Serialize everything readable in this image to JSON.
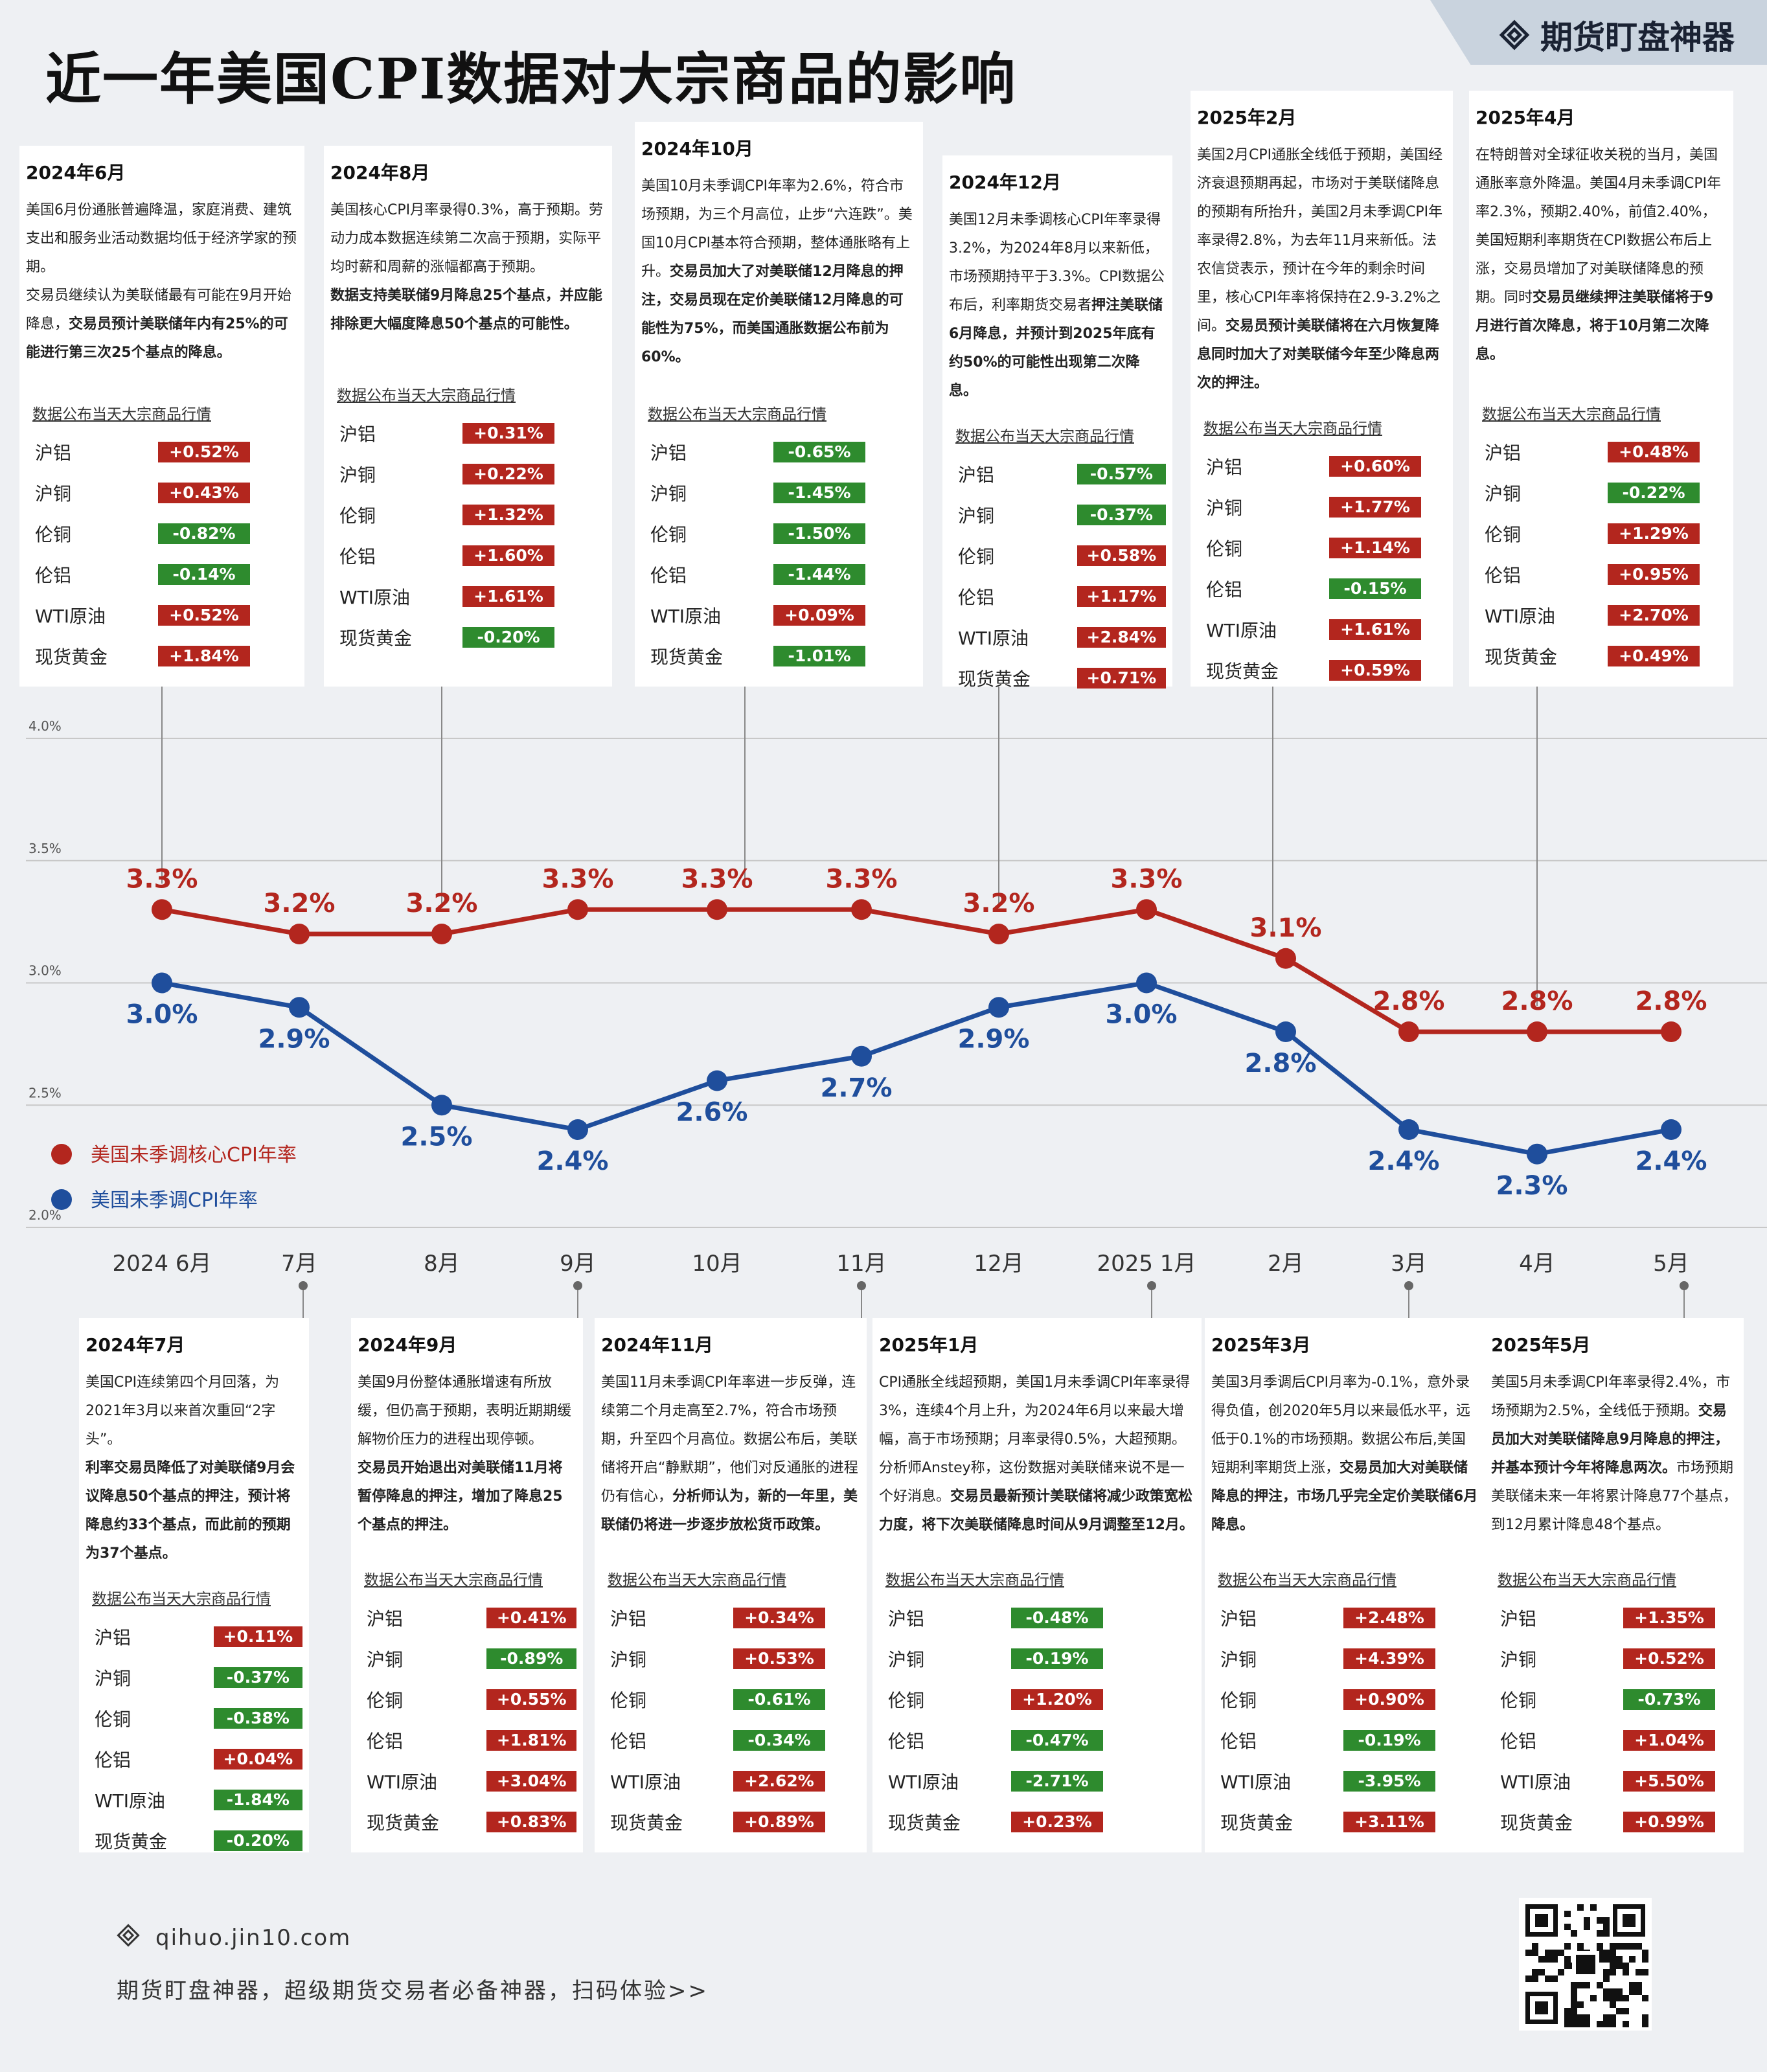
{
  "title": "近一年美国CPI数据对大宗商品的影响",
  "brand": "期货盯盘神器",
  "market_heading": "数据公布当天大宗商品行情",
  "commodity_names": [
    "沪铝",
    "沪铜",
    "伦铜",
    "伦铝",
    "WTI原油",
    "现货黄金"
  ],
  "colors": {
    "core": "#b3261e",
    "cpi": "#1f4e9c",
    "up": "#b3261e",
    "down": "#2e8b2e",
    "grid": "#c8c8c8"
  },
  "cards": [
    {
      "month": "2024年6月",
      "text": [
        {
          "t": "美国6月份通胀普遍降温，家庭消费、建筑支出和服务业活动数据均低于经济学家的预期。",
          "b": false
        },
        {
          "t": "交易员继续认为美联储最有可能在9月开始降息，",
          "b": false,
          "tb": "交易员预计美联储年内有25%的可能进行第三次25个基点的降息。"
        }
      ],
      "changes": [
        "+0.52%",
        "+0.43%",
        "-0.82%",
        "-0.14%",
        "+0.52%",
        "+1.84%"
      ]
    },
    {
      "month": "2024年8月",
      "text": [
        {
          "t": "美国核心CPI月率录得0.3%，高于预期。劳动力成本数据连续第二次高于预期，实际平均时薪和周薪的涨幅都高于预期。",
          "b": false
        },
        {
          "t": "",
          "b": false,
          "tb": "数据支持美联储9月降息25个基点，并应能排除更大幅度降息50个基点的可能性。"
        }
      ],
      "changes": [
        "+0.31%",
        "+0.22%",
        "+1.32%",
        "+1.60%",
        "+1.61%",
        "-0.20%"
      ]
    },
    {
      "month": "2024年10月",
      "text": [
        {
          "t": "美国10月未季调CPI年率为2.6%，符合市场预期，为三个月高位，止步“六连跌”。美国10月CPI基本符合预期，整体通胀略有上升。",
          "b": false,
          "tb": "交易员加大了对美联储12月降息的押注，交易员现在定价美联储12月降息的可能性为75%，而美国通胀数据公布前为60%。"
        }
      ],
      "changes": [
        "-0.65%",
        "-1.45%",
        "-1.50%",
        "-1.44%",
        "+0.09%",
        "-1.01%"
      ]
    },
    {
      "month": "2024年12月",
      "text": [
        {
          "t": "美国12月未季调核心CPI年率录得3.2%，为2024年8月以来新低，市场预期持平于3.3%。CPI数据公布后，利率期货交易者",
          "b": false,
          "tb": "押注美联储6月降息，并预计到2025年底有约50%的可能性出现第二次降息。"
        }
      ],
      "changes": [
        "-0.57%",
        "-0.37%",
        "+0.58%",
        "+1.17%",
        "+2.84%",
        "+0.71%"
      ]
    },
    {
      "month": "2025年2月",
      "text": [
        {
          "t": "美国2月CPI通胀全线低于预期，美国经济衰退预期再起，市场对于美联储降息的预期有所抬升，美国2月未季调CPI年率录得2.8%，为去年11月来新低。法农信贷表示，预计在今年的剩余时间里，核心CPI年率将保持在2.9-3.2%之间。",
          "b": false,
          "tb": "交易员预计美联储将在六月恢复降息同时加大了对美联储今年至少降息两次的押注。"
        }
      ],
      "changes": [
        "+0.60%",
        "+1.77%",
        "+1.14%",
        "-0.15%",
        "+1.61%",
        "+0.59%"
      ]
    },
    {
      "month": "2025年4月",
      "text": [
        {
          "t": "在特朗普对全球征收关税的当月，美国通胀率意外降温。美国4月未季调CPI年率2.3%，预期2.40%，前值2.40%，美国短期利率期货在CPI数据公布后上涨，交易员增加了对美联储降息的预期。同时",
          "b": false,
          "tb": "交易员继续押注美联储将于9月进行首次降息，将于10月第二次降息。"
        }
      ],
      "changes": [
        "+0.48%",
        "-0.22%",
        "+1.29%",
        "+0.95%",
        "+2.70%",
        "+0.49%"
      ]
    },
    {
      "month": "2024年7月",
      "text": [
        {
          "t": "美国CPI连续第四个月回落，为2021年3月以来首次重回“2字头”。",
          "b": false
        },
        {
          "t": "",
          "b": false,
          "tb": "利率交易员降低了对美联储9月会议降息50个基点的押注，预计将降息约33个基点，而此前的预期为37个基点。"
        }
      ],
      "changes": [
        "+0.11%",
        "-0.37%",
        "-0.38%",
        "+0.04%",
        "-1.84%",
        "-0.20%"
      ]
    },
    {
      "month": "2024年9月",
      "text": [
        {
          "t": "美国9月份整体通胀增速有所放缓，但仍高于预期，表明近期期缓解物价压力的进程出现停顿。",
          "b": false
        },
        {
          "t": "",
          "b": false,
          "tb": "交易员开始退出对美联储11月将暂停降息的押注，增加了降息25个基点的押注。"
        }
      ],
      "changes": [
        "+0.41%",
        "-0.89%",
        "+0.55%",
        "+1.81%",
        "+3.04%",
        "+0.83%"
      ]
    },
    {
      "month": "2024年11月",
      "text": [
        {
          "t": "美国11月未季调CPI年率进一步反弹，连续第二个月走高至2.7%，符合市场预期，升至四个月高位。数据公布后，美联储将开启“静默期”，他们对反通胀的进程仍有信心，",
          "b": false,
          "tb": "分析师认为，新的一年里，美联储仍将进一步逐步放松货币政策。"
        }
      ],
      "changes": [
        "+0.34%",
        "+0.53%",
        "-0.61%",
        "-0.34%",
        "+2.62%",
        "+0.89%"
      ]
    },
    {
      "month": "2025年1月",
      "text": [
        {
          "t": "CPI通胀全线超预期，美国1月未季调CPI年率录得3%，连续4个月上升，为2024年6月以来最大增幅，高于市场预期；月率录得0.5%，大超预期。分析师Anstey称，这份数据对美联储来说不是一个好消息。",
          "b": false,
          "tb": "交易员最新预计美联储将减少政策宽松力度，将下次美联储降息时间从9月调整至12月。"
        }
      ],
      "changes": [
        "-0.48%",
        "-0.19%",
        "+1.20%",
        "-0.47%",
        "-2.71%",
        "+0.23%"
      ]
    },
    {
      "month": "2025年3月",
      "text": [
        {
          "t": "美国3月季调后CPI月率为-0.1%，意外录得负值，创2020年5月以来最低水平，远低于0.1%的市场预期。数据公布后,美国短期利率期货上涨，",
          "b": false,
          "tb": "交易员加大对美联储降息的押注，市场几乎完全定价美联储6月降息。"
        }
      ],
      "changes": [
        "+2.48%",
        "+4.39%",
        "+0.90%",
        "-0.19%",
        "-3.95%",
        "+3.11%"
      ]
    },
    {
      "month": "2025年5月",
      "text": [
        {
          "t": "美国5月未季调CPI年率录得2.4%，市场预期为2.5%，全线低于预期。",
          "b": false,
          "tb": "交易员加大对美联储降息9月降息的押注，并基本预计今年将降息两次。",
          "t2": "市场预期美联储未来一年将累计降息77个基点，到12月累计降息48个基点。"
        }
      ],
      "changes": [
        "+1.35%",
        "+0.52%",
        "-0.73%",
        "+1.04%",
        "+5.50%",
        "+0.99%"
      ]
    }
  ],
  "chart_data": {
    "type": "line",
    "x": [
      "2024 6月",
      "7月",
      "8月",
      "9月",
      "10月",
      "11月",
      "12月",
      "2025 1月",
      "2月",
      "3月",
      "4月",
      "5月"
    ],
    "ylim": [
      2.0,
      4.0
    ],
    "yticks": [
      "2.0%",
      "2.5%",
      "3.0%",
      "3.5%",
      "4.0%"
    ],
    "series": [
      {
        "name": "美国未季调核心CPI年率",
        "values": [
          3.3,
          3.2,
          3.2,
          3.3,
          3.3,
          3.3,
          3.2,
          3.3,
          3.1,
          2.8,
          2.8,
          2.8
        ],
        "labels": [
          "3.3%",
          "3.2%",
          "3.2%",
          "3.3%",
          "3.3%",
          "3.3%",
          "3.2%",
          "3.3%",
          "3.1%",
          "2.8%",
          "2.8%",
          "2.8%"
        ]
      },
      {
        "name": "美国未季调CPI年率",
        "values": [
          3.0,
          2.9,
          2.5,
          2.4,
          2.6,
          2.7,
          2.9,
          3.0,
          2.8,
          2.4,
          2.3,
          2.4
        ],
        "labels": [
          "3.0%",
          "2.9%",
          "2.5%",
          "2.4%",
          "2.6%",
          "2.7%",
          "2.9%",
          "3.0%",
          "2.8%",
          "2.4%",
          "2.3%",
          "2.4%"
        ]
      }
    ],
    "grid": true,
    "legend": "left"
  },
  "footer": {
    "site": "qihuo.jin10.com",
    "slogan": "期货盯盘神器，超级期货交易者必备神器，扫码体验>>"
  }
}
